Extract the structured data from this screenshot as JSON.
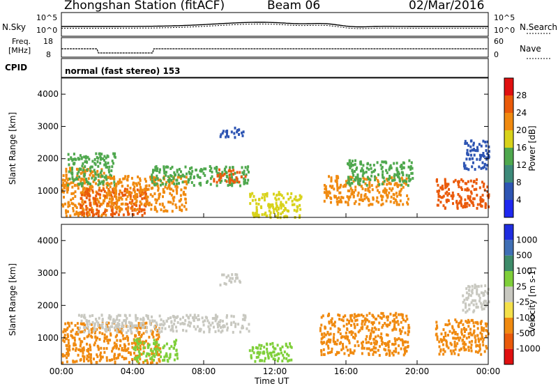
{
  "header": {
    "station": "Zhongshan Station (fitACF)",
    "beam": "Beam 06",
    "date": "02/Mar/2016"
  },
  "top_panels": {
    "nsky_label": "N.Sky",
    "nsky_ticks": [
      "10^5",
      "10^0"
    ],
    "nsearch_label": "N.Search",
    "nsearch_ticks": [
      "10^5",
      "10^0"
    ],
    "freq_label": "Freq.",
    "freq_unit": "[MHz]",
    "freq_ticks": [
      "18",
      "8"
    ],
    "nave_label": "Nave",
    "nave_ticks": [
      "60",
      "0"
    ],
    "cpid_label": "CPID",
    "cpid_text": "normal (fast stereo) 153"
  },
  "chart_data": [
    {
      "type": "heatmap",
      "title": "",
      "ylabel": "Slant Range [km]",
      "xlabel": "",
      "ylim": [
        180,
        4500
      ],
      "yticks": [
        "1000",
        "2000",
        "3000",
        "4000"
      ],
      "xticks": [
        "00:00",
        "04:00",
        "08:00",
        "12:00",
        "16:00",
        "20:00",
        "00:00"
      ],
      "colorbar": {
        "label": "Power [dB]",
        "ticks": [
          "4",
          "8",
          "12",
          "16",
          "20",
          "24",
          "28"
        ],
        "colors": [
          "#1f28f0",
          "#2e55b3",
          "#3d8a7a",
          "#4fa84e",
          "#d8d21a",
          "#f08a10",
          "#ea5a0a",
          "#e01010"
        ]
      },
      "patches": [
        {
          "t": [
            0.0,
            2.6
          ],
          "r": [
            250,
            1750
          ],
          "v": 22
        },
        {
          "t": [
            0.3,
            3.0
          ],
          "r": [
            1200,
            2200
          ],
          "v": 12
        },
        {
          "t": [
            1.0,
            4.8
          ],
          "r": [
            250,
            1100
          ],
          "v": 26
        },
        {
          "t": [
            2.5,
            7.0
          ],
          "r": [
            400,
            1500
          ],
          "v": 20
        },
        {
          "t": [
            5.0,
            10.5
          ],
          "r": [
            1200,
            1800
          ],
          "v": 14
        },
        {
          "t": [
            8.5,
            10.3
          ],
          "r": [
            1300,
            1700
          ],
          "v": 24
        },
        {
          "t": [
            8.8,
            10.2
          ],
          "r": [
            2700,
            3000
          ],
          "v": 6
        },
        {
          "t": [
            10.5,
            13.5
          ],
          "r": [
            200,
            1000
          ],
          "v": 18
        },
        {
          "t": [
            14.7,
            19.5
          ],
          "r": [
            600,
            1500
          ],
          "v": 20
        },
        {
          "t": [
            16.0,
            19.7
          ],
          "r": [
            1200,
            2000
          ],
          "v": 12
        },
        {
          "t": [
            21.0,
            24.0
          ],
          "r": [
            500,
            1400
          ],
          "v": 24
        },
        {
          "t": [
            22.5,
            24.0
          ],
          "r": [
            1700,
            2600
          ],
          "v": 6
        }
      ]
    },
    {
      "type": "heatmap",
      "title": "",
      "ylabel": "Slant Range [km]",
      "xlabel": "Time UT",
      "ylim": [
        180,
        4500
      ],
      "yticks": [
        "1000",
        "2000",
        "3000",
        "4000"
      ],
      "xticks": [
        "00:00",
        "04:00",
        "08:00",
        "12:00",
        "16:00",
        "20:00",
        "00:00"
      ],
      "colorbar": {
        "label": "Velocity [m s-1]",
        "ticks": [
          "1000",
          "500",
          "100",
          "25",
          "-25",
          "-100",
          "-500",
          "-1000"
        ],
        "colors": [
          "#1f2de0",
          "#3f6fb5",
          "#3e8c6a",
          "#7fcf3a",
          "#c8c8c0",
          "#f4e04a",
          "#f08a10",
          "#ea5a0a",
          "#e01010"
        ]
      },
      "patches": [
        {
          "t": [
            0.0,
            5.5
          ],
          "r": [
            250,
            1500
          ],
          "v": -300
        },
        {
          "t": [
            0.8,
            10.5
          ],
          "r": [
            1200,
            1750
          ],
          "v": 0
        },
        {
          "t": [
            4.0,
            6.5
          ],
          "r": [
            300,
            1000
          ],
          "v": 80
        },
        {
          "t": [
            8.8,
            10.0
          ],
          "r": [
            2650,
            3000
          ],
          "v": 0
        },
        {
          "t": [
            10.5,
            13.0
          ],
          "r": [
            300,
            900
          ],
          "v": 50
        },
        {
          "t": [
            14.5,
            19.5
          ],
          "r": [
            500,
            1800
          ],
          "v": -300
        },
        {
          "t": [
            21.0,
            24.0
          ],
          "r": [
            500,
            1600
          ],
          "v": -200
        },
        {
          "t": [
            22.5,
            24.0
          ],
          "r": [
            1800,
            2700
          ],
          "v": 0
        }
      ]
    }
  ]
}
